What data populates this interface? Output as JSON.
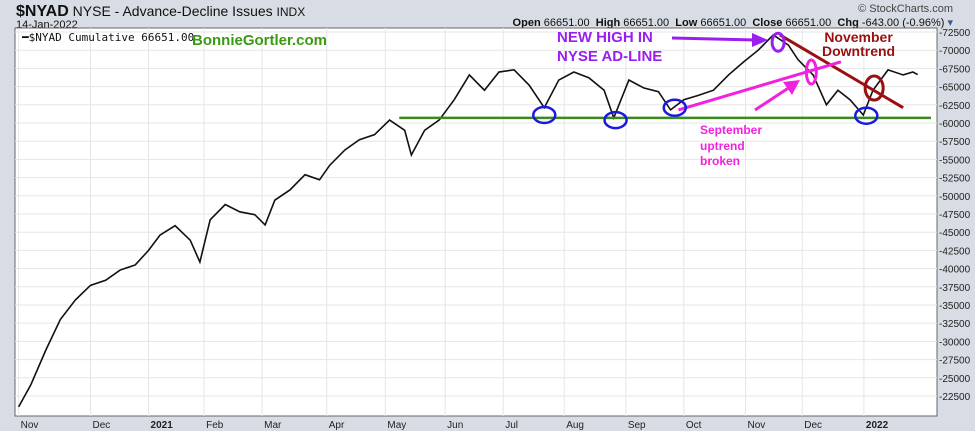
{
  "header": {
    "symbol": "$NYAD",
    "name": "NYSE - Advance-Decline Issues",
    "exchange": "INDX",
    "date": "14-Jan-2022",
    "brand": "© StockCharts.com",
    "open_label": "Open",
    "open": "66651.00",
    "high_label": "High",
    "high": "66651.00",
    "low_label": "Low",
    "low": "66651.00",
    "close_label": "Close",
    "close": "66651.00",
    "chg_label": "Chg",
    "chg": "-643.00 (-0.96%)"
  },
  "legend": {
    "label": "$NYAD Cumulative 66651.00"
  },
  "watermark": "BonnieGortler.com",
  "annotations": {
    "new_high": [
      "NEW HIGH IN",
      "NYSE AD-LINE"
    ],
    "november": [
      "November",
      "Downtrend"
    ],
    "september": [
      "September",
      "uptrend",
      "broken"
    ]
  },
  "colors": {
    "line": "#111111",
    "support": "#3a8a1e",
    "blue": "#1a1adc",
    "purple": "#9b1ef0",
    "pink": "#f022e0",
    "red": "#9a1010",
    "brand_green": "#3a9a10"
  },
  "chart_data": {
    "type": "line",
    "title": "$NYAD NYSE - Advance-Decline Issues",
    "xlabel": "",
    "ylabel": "",
    "ylim": [
      19750,
      73050
    ],
    "xlim": [
      -0.06,
      15.2
    ],
    "yticks": [
      22500,
      25000,
      27500,
      30000,
      32500,
      35000,
      37500,
      40000,
      42500,
      45000,
      47500,
      50000,
      52500,
      55000,
      57500,
      60000,
      62500,
      65000,
      67500,
      70000,
      72500
    ],
    "xticks": [
      {
        "m": 0,
        "label": "Nov"
      },
      {
        "m": 1.19,
        "label": "Dec"
      },
      {
        "m": 2.15,
        "label": "2021",
        "bold": true
      },
      {
        "m": 3.07,
        "label": "Feb"
      },
      {
        "m": 4.03,
        "label": "Mar"
      },
      {
        "m": 5.1,
        "label": "Apr"
      },
      {
        "m": 6.07,
        "label": "May"
      },
      {
        "m": 7.06,
        "label": "Jun"
      },
      {
        "m": 8.02,
        "label": "Jul"
      },
      {
        "m": 9.03,
        "label": "Aug"
      },
      {
        "m": 10.05,
        "label": "Sep"
      },
      {
        "m": 11.01,
        "label": "Oct"
      },
      {
        "m": 12.03,
        "label": "Nov"
      },
      {
        "m": 12.97,
        "label": "Dec"
      },
      {
        "m": 13.99,
        "label": "2022",
        "bold": true
      }
    ],
    "x": [
      0,
      0.2,
      0.45,
      0.69,
      0.94,
      1.19,
      1.44,
      1.68,
      1.93,
      2.15,
      2.34,
      2.59,
      2.84,
      3.0,
      3.17,
      3.42,
      3.66,
      3.91,
      4.08,
      4.24,
      4.49,
      4.74,
      4.98,
      5.15,
      5.4,
      5.64,
      5.89,
      6.14,
      6.39,
      6.5,
      6.72,
      6.96,
      7.21,
      7.46,
      7.71,
      7.95,
      8.2,
      8.45,
      8.7,
      8.94,
      9.19,
      9.44,
      9.69,
      9.85,
      10.1,
      10.35,
      10.59,
      10.79,
      11.01,
      11.25,
      11.5,
      11.75,
      12.0,
      12.24,
      12.49,
      12.74,
      12.9,
      13.15,
      13.37,
      13.56,
      13.76,
      13.98,
      14.14,
      14.39,
      14.64,
      14.8,
      14.88
    ],
    "series": [
      {
        "name": "$NYAD Cumulative",
        "values": [
          21000,
          24000,
          28800,
          33000,
          35700,
          37700,
          38400,
          39800,
          40500,
          42500,
          44600,
          45900,
          43900,
          40900,
          46700,
          48800,
          47800,
          47400,
          46000,
          49400,
          50800,
          52900,
          52200,
          54200,
          56300,
          57700,
          58400,
          60400,
          59000,
          55600,
          59000,
          60400,
          63200,
          66600,
          64500,
          67000,
          67300,
          65200,
          62100,
          65900,
          67000,
          66200,
          64500,
          60700,
          65900,
          64800,
          64300,
          61800,
          63200,
          63800,
          64500,
          66600,
          68400,
          70000,
          72100,
          70700,
          68700,
          66600,
          62500,
          64500,
          63200,
          61100,
          64500,
          67300,
          66600,
          67000,
          66651
        ]
      }
    ],
    "overlays": {
      "support_line": {
        "from": [
          6.3,
          60700
        ],
        "to": [
          15.1,
          60700
        ]
      },
      "blue_ellipses": [
        [
          8.7,
          61100
        ],
        [
          9.88,
          60400
        ],
        [
          10.86,
          62100
        ],
        [
          14.03,
          61000
        ]
      ],
      "purple_ellipse": [
        12.57,
        71100
      ],
      "pink_ellipse": [
        13.12,
        67000
      ],
      "red_ellipse": [
        14.16,
        64800
      ],
      "red_trend": {
        "from": [
          12.6,
          72100
        ],
        "to": [
          14.64,
          62100
        ]
      },
      "pink_trend": {
        "from": [
          10.92,
          61800
        ],
        "to": [
          13.61,
          68400
        ]
      }
    }
  }
}
